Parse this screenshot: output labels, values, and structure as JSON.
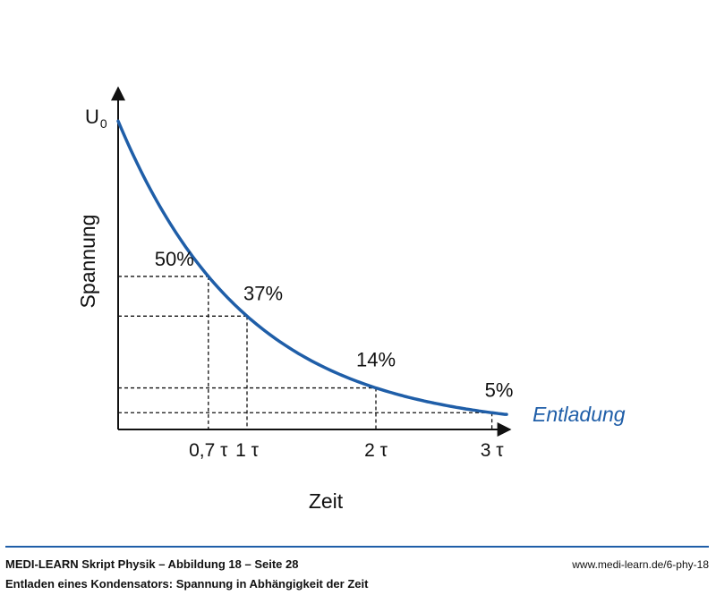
{
  "chart_data": {
    "type": "line",
    "title": "",
    "xlabel": "Zeit",
    "ylabel": "Spannung",
    "y_max_label": "U",
    "y_max_label_sub": "0",
    "ylim": [
      0,
      100
    ],
    "xlim": [
      0,
      3.0
    ],
    "series": [
      {
        "name": "Entladung",
        "color": "#1f5ea8",
        "decay_constant_tau": 1,
        "y0": 100,
        "x_range": [
          0,
          3.0
        ]
      }
    ],
    "x_ticks": [
      {
        "value": 0.7,
        "label": "0,7 τ"
      },
      {
        "value": 1.0,
        "label": "1 τ"
      },
      {
        "value": 2.0,
        "label": "2 τ"
      },
      {
        "value": 2.9,
        "label": "3 τ"
      }
    ],
    "annotations": [
      {
        "x": 0.7,
        "y": 50,
        "label": "50%"
      },
      {
        "x": 1.0,
        "y": 37,
        "label": "37%"
      },
      {
        "x": 2.0,
        "y": 14,
        "label": "14%"
      },
      {
        "x": 2.9,
        "y": 5,
        "label": "5%"
      }
    ],
    "grid": false,
    "legend": "right"
  },
  "footer": {
    "title": "MEDI-LEARN Skript Physik – Abbildung 18 – Seite 28",
    "subtitle": "Entladen eines Kondensators: Spannung in Abhängigkeit der Zeit",
    "url": "www.medi-learn.de/6-phy-18"
  }
}
